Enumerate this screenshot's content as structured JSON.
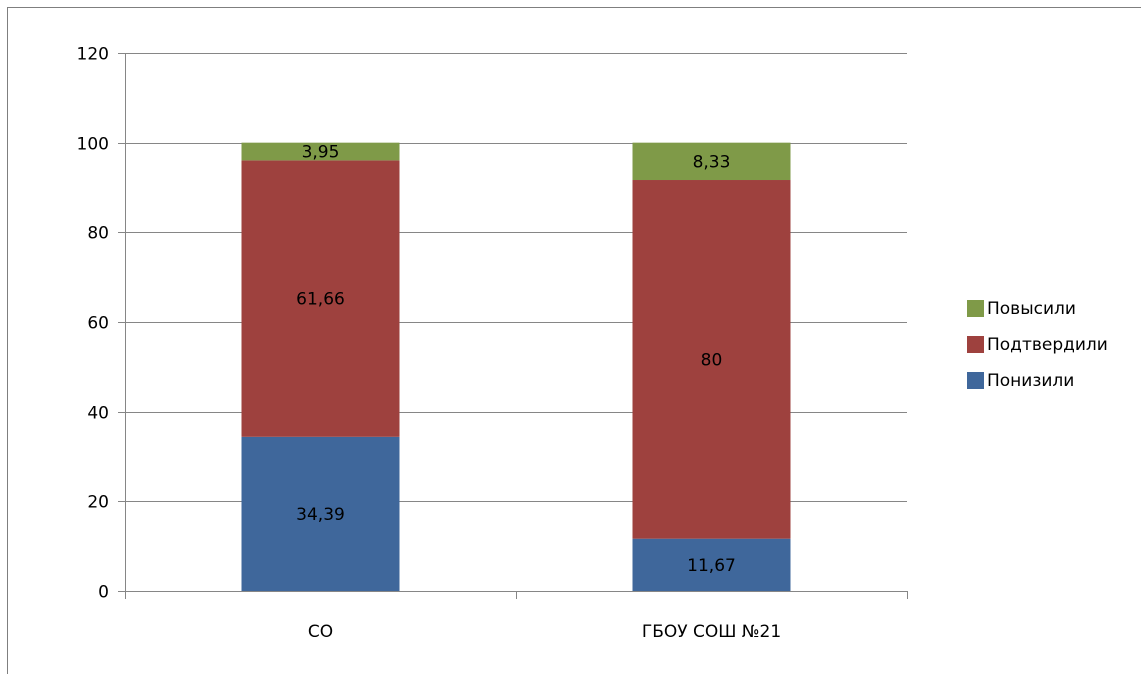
{
  "chart_data": {
    "type": "bar",
    "stacked": true,
    "categories": [
      "СО",
      "ГБОУ СОШ №21"
    ],
    "series": [
      {
        "name": "Понизили",
        "values": [
          34.39,
          11.67
        ],
        "labels": [
          "34,39",
          "11,67"
        ],
        "color": "#3f679b"
      },
      {
        "name": "Подтвердили",
        "values": [
          61.66,
          80
        ],
        "labels": [
          "61,66",
          "80"
        ],
        "color": "#9e413e"
      },
      {
        "name": "Повысили",
        "values": [
          3.95,
          8.33
        ],
        "labels": [
          "3,95",
          "8,33"
        ],
        "color": "#7f9a48"
      }
    ],
    "ylim": [
      0,
      120
    ],
    "yticks": [
      0,
      20,
      40,
      60,
      80,
      100,
      120
    ],
    "ytick_labels": [
      "0",
      "20",
      "40",
      "60",
      "80",
      "100",
      "120"
    ],
    "grid": true,
    "legend_position": "right",
    "legend_order": [
      "Повысили",
      "Подтвердили",
      "Понизили"
    ]
  }
}
